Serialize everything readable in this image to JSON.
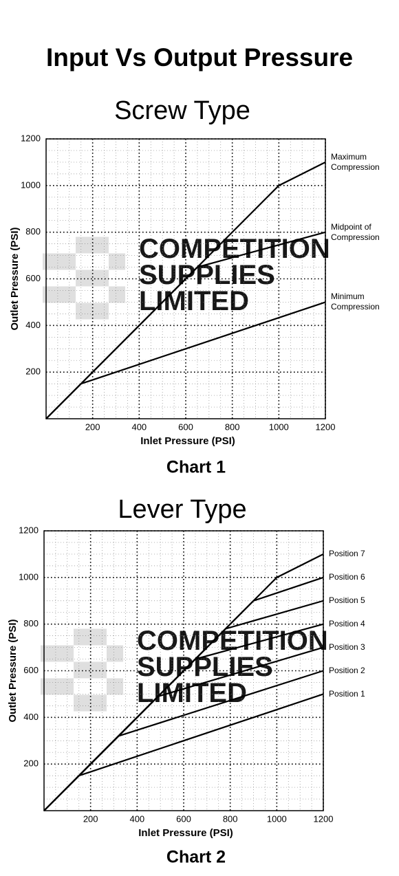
{
  "title": "Input Vs Output Pressure",
  "chart_data": [
    {
      "type": "line",
      "title": "Screw Type",
      "caption": "Chart 1",
      "x_label": "Inlet Pressure (PSI)",
      "y_label": "Outlet Pressure (PSI)",
      "xlim": [
        0,
        1200
      ],
      "ylim": [
        0,
        1200
      ],
      "xticks": [
        200,
        400,
        600,
        800,
        1000,
        1200
      ],
      "yticks": [
        200,
        400,
        600,
        800,
        1000,
        1200
      ],
      "grid": true,
      "color": "#000000",
      "watermark": [
        "COMPETITION",
        "SUPPLIES",
        "LIMITED"
      ],
      "series": [
        {
          "name": "Maximum Compression",
          "x": [
            0,
            150,
            1000,
            1200
          ],
          "values": [
            0,
            150,
            1000,
            1100
          ]
        },
        {
          "name": "Midpoint of Compression",
          "x": [
            0,
            150,
            650,
            1200
          ],
          "values": [
            0,
            150,
            650,
            800
          ]
        },
        {
          "name": "Minimum Compression",
          "x": [
            0,
            150,
            1200
          ],
          "values": [
            0,
            150,
            500
          ]
        }
      ]
    },
    {
      "type": "line",
      "title": "Lever Type",
      "caption": "Chart 2",
      "x_label": "Inlet Pressure (PSI)",
      "y_label": "Outlet Pressure (PSI)",
      "xlim": [
        0,
        1200
      ],
      "ylim": [
        0,
        1200
      ],
      "xticks": [
        200,
        400,
        600,
        800,
        1000,
        1200
      ],
      "yticks": [
        200,
        400,
        600,
        800,
        1000,
        1200
      ],
      "grid": true,
      "color": "#000000",
      "watermark": [
        "COMPETITION",
        "SUPPLIES",
        "LIMITED"
      ],
      "series": [
        {
          "name": "Position 7",
          "x": [
            0,
            1000,
            1200
          ],
          "values": [
            0,
            1000,
            1100
          ]
        },
        {
          "name": "Position 6",
          "x": [
            0,
            900,
            1200
          ],
          "values": [
            0,
            900,
            1000
          ]
        },
        {
          "name": "Position 5",
          "x": [
            0,
            780,
            1200
          ],
          "values": [
            0,
            780,
            900
          ]
        },
        {
          "name": "Position 4",
          "x": [
            0,
            650,
            1200
          ],
          "values": [
            0,
            650,
            800
          ]
        },
        {
          "name": "Position 3",
          "x": [
            0,
            490,
            1200
          ],
          "values": [
            0,
            490,
            700
          ]
        },
        {
          "name": "Position 2",
          "x": [
            0,
            320,
            1200
          ],
          "values": [
            0,
            320,
            600
          ]
        },
        {
          "name": "Position 1",
          "x": [
            0,
            150,
            1200
          ],
          "values": [
            0,
            150,
            500
          ]
        }
      ]
    }
  ]
}
